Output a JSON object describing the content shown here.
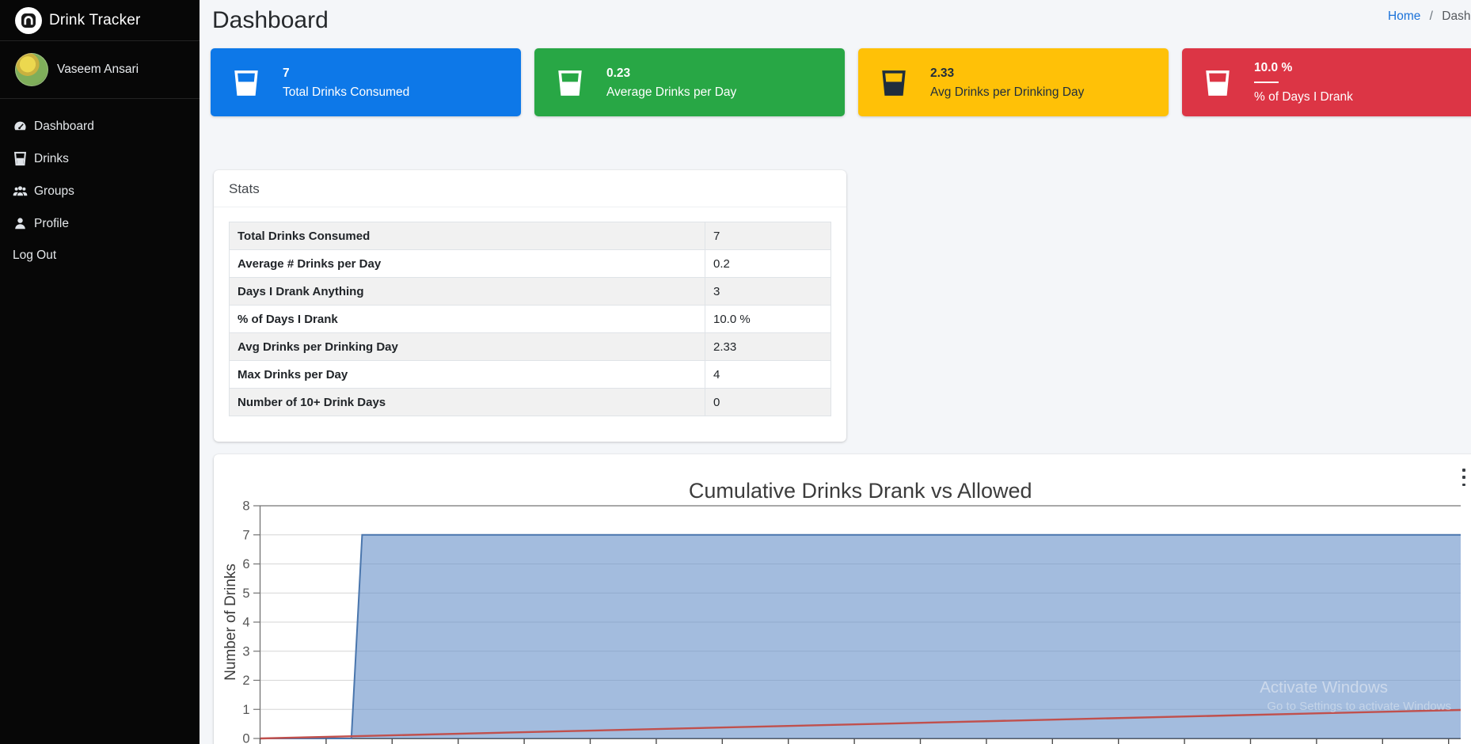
{
  "sidebar": {
    "brand": "Drink Tracker",
    "user": "Vaseem Ansari",
    "items": [
      {
        "label": "Dashboard",
        "icon": "dashboard-icon",
        "slug": "dashboard"
      },
      {
        "label": "Drinks",
        "icon": "drinks-icon",
        "slug": "drinks"
      },
      {
        "label": "Groups",
        "icon": "groups-icon",
        "slug": "groups"
      },
      {
        "label": "Profile",
        "icon": "profile-icon",
        "slug": "profile"
      },
      {
        "label": "Log Out",
        "icon": null,
        "slug": "log-out"
      }
    ]
  },
  "header": {
    "title": "Dashboard",
    "breadcrumb": [
      "Home",
      "Dashboard"
    ],
    "separator": "/"
  },
  "cards": [
    {
      "value": "7",
      "label": "Total Drinks Consumed",
      "bg": "#0d78e8",
      "fg": "#ffffff",
      "icon": "glass-icon",
      "divider": false
    },
    {
      "value": "0.23",
      "label": "Average Drinks per Day",
      "bg": "#28a745",
      "fg": "#ffffff",
      "icon": "glass-icon",
      "divider": false
    },
    {
      "value": "2.33",
      "label": "Avg Drinks per Drinking Day",
      "bg": "#ffc107",
      "fg": "#1f2d3d",
      "icon": "glass-icon",
      "divider": false
    },
    {
      "value": "10.0 %",
      "label": "% of Days I Drank",
      "bg": "#dc3545",
      "fg": "#ffffff",
      "icon": "glass-icon",
      "divider": true
    }
  ],
  "stats": {
    "title": "Stats",
    "rows": [
      [
        "Total Drinks Consumed",
        "7"
      ],
      [
        "Average # Drinks per Day",
        "0.2"
      ],
      [
        "Days I Drank Anything",
        "3"
      ],
      [
        "% of Days I Drank",
        "10.0 %"
      ],
      [
        "Avg Drinks per Drinking Day",
        "2.33"
      ],
      [
        "Max Drinks per Day",
        "4"
      ],
      [
        "Number of 10+ Drink Days",
        "0"
      ]
    ]
  },
  "chart_data": {
    "type": "area",
    "title": "Cumulative Drinks Drank vs Allowed",
    "xlabel": "",
    "ylabel": "Number of Drinks",
    "ylim": [
      0,
      8
    ],
    "yticks": [
      0,
      1,
      2,
      3,
      4,
      5,
      6,
      7,
      8
    ],
    "x_axis": {
      "tick_count": 19,
      "labels_visible": false
    },
    "grid": true,
    "legend": "none",
    "series": [
      {
        "name": "Drank",
        "kind": "area",
        "fill": "#6a93c9",
        "stroke": "#4a76ad",
        "points": [
          [
            0,
            0
          ],
          [
            0.076,
            0
          ],
          [
            0.085,
            7
          ],
          [
            1,
            7
          ]
        ]
      },
      {
        "name": "Allowed",
        "kind": "line",
        "stroke": "#c0504d",
        "points": [
          [
            0,
            0
          ],
          [
            1,
            0.98
          ]
        ]
      }
    ]
  },
  "watermark": {
    "line1": "Activate Windows",
    "line2": "Go to Settings to activate Windows"
  },
  "colors": {
    "grid": "#d6d6d6",
    "frame": "#737373",
    "tick_text": "#565656",
    "title_text": "#3c3c3c"
  }
}
